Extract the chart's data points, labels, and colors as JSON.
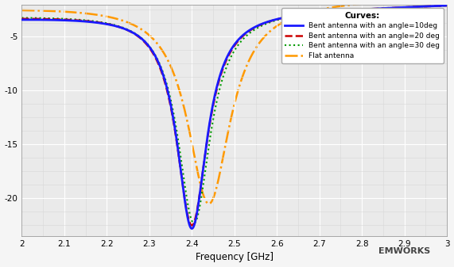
{
  "xlabel": "Frequency [GHz]",
  "xlim": [
    2.0,
    3.0
  ],
  "ylim": [
    -23.5,
    -2.0
  ],
  "yticks": [
    -5,
    -10,
    -15,
    -20
  ],
  "xticks": [
    2.0,
    2.1,
    2.2,
    2.3,
    2.4,
    2.5,
    2.6,
    2.7,
    2.8,
    2.9,
    3.0
  ],
  "plot_bg": "#eaeaea",
  "fig_bg": "#f5f5f5",
  "grid_major_color": "#ffffff",
  "grid_minor_color": "#d8d8d8",
  "curves": {
    "bent10": {
      "color": "#1a1aff",
      "lw": 2.0,
      "ls": "-",
      "label": "Bent antenna with an angle=10deg"
    },
    "bent20": {
      "color": "#cc0000",
      "lw": 1.8,
      "ls": "--",
      "label": "Bent antenna with an angle=20 deg"
    },
    "bent30": {
      "color": "#009900",
      "lw": 1.5,
      "ls": ":",
      "label": "Bent antenna with an angle=30 deg"
    },
    "flat": {
      "color": "#ff9900",
      "lw": 1.8,
      "ls": "-.",
      "label": "Flat antenna"
    }
  },
  "legend_title": "Curves:",
  "emworks_text": "EMWORKS"
}
